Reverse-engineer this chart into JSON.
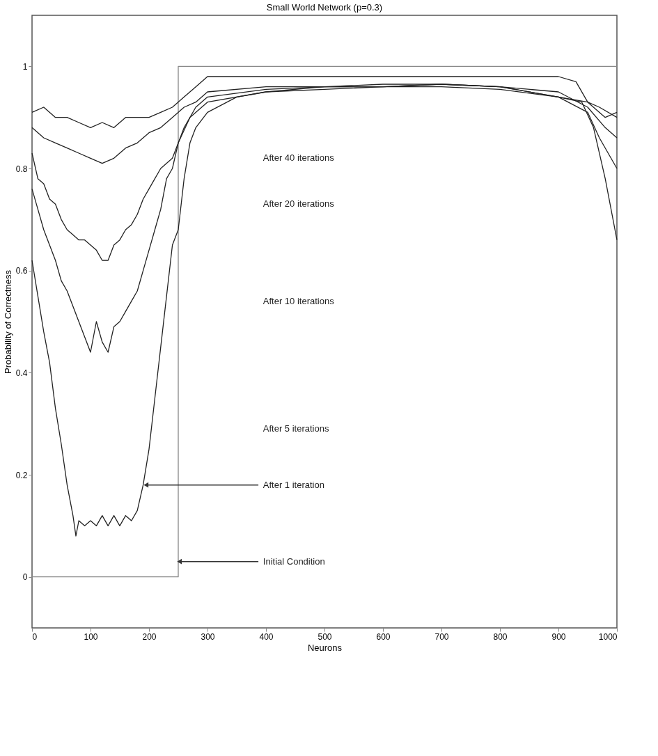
{
  "chart_data": {
    "type": "line",
    "title": "Small World Network (p=0.3)",
    "xlabel": "Neurons",
    "ylabel": "Probability of Correctness",
    "xlim": [
      0,
      1000
    ],
    "xticks": [
      0,
      100,
      200,
      300,
      400,
      500,
      600,
      700,
      800,
      900,
      {
        "value": 1000,
        "label": "1000"
      }
    ],
    "ylim": [
      -0.1,
      1.1
    ],
    "yticks": [
      0,
      0.2,
      0.4,
      0.6,
      0.8,
      1
    ],
    "grid": false,
    "marker": "none",
    "line_style": "solid",
    "series": [
      {
        "color": "#888888",
        "x": [
          0,
          250,
          250,
          1000
        ],
        "values": [
          0,
          0,
          1,
          1
        ]
      },
      {
        "color": "#222222",
        "x": [
          0,
          10,
          20,
          30,
          40,
          50,
          60,
          70,
          75,
          80,
          90,
          100,
          110,
          120,
          130,
          140,
          150,
          160,
          170,
          180,
          190,
          200,
          210,
          220,
          230,
          240,
          250,
          260,
          270,
          280,
          300,
          350,
          400,
          500,
          600,
          700,
          800,
          900,
          940,
          960,
          980,
          1000
        ],
        "values": [
          0.62,
          0.55,
          0.48,
          0.42,
          0.33,
          0.26,
          0.18,
          0.12,
          0.08,
          0.11,
          0.1,
          0.11,
          0.1,
          0.12,
          0.1,
          0.12,
          0.1,
          0.12,
          0.11,
          0.13,
          0.18,
          0.25,
          0.35,
          0.45,
          0.55,
          0.65,
          0.68,
          0.78,
          0.85,
          0.88,
          0.91,
          0.94,
          0.95,
          0.955,
          0.96,
          0.96,
          0.955,
          0.94,
          0.93,
          0.88,
          0.78,
          0.66
        ]
      },
      {
        "color": "#222222",
        "x": [
          0,
          10,
          20,
          30,
          40,
          50,
          60,
          70,
          80,
          90,
          100,
          110,
          120,
          130,
          140,
          150,
          160,
          170,
          180,
          190,
          200,
          210,
          220,
          230,
          240,
          250,
          270,
          300,
          400,
          500,
          600,
          700,
          800,
          900,
          950,
          970,
          1000
        ],
        "values": [
          0.76,
          0.72,
          0.68,
          0.65,
          0.62,
          0.58,
          0.56,
          0.53,
          0.5,
          0.47,
          0.44,
          0.5,
          0.46,
          0.44,
          0.49,
          0.5,
          0.52,
          0.54,
          0.56,
          0.6,
          0.64,
          0.68,
          0.72,
          0.78,
          0.8,
          0.85,
          0.9,
          0.93,
          0.95,
          0.96,
          0.96,
          0.965,
          0.96,
          0.94,
          0.91,
          0.86,
          0.8
        ]
      },
      {
        "color": "#222222",
        "x": [
          0,
          10,
          20,
          30,
          40,
          50,
          60,
          70,
          80,
          90,
          100,
          110,
          120,
          130,
          140,
          150,
          160,
          170,
          180,
          190,
          200,
          210,
          220,
          240,
          260,
          280,
          300,
          400,
          500,
          600,
          700,
          800,
          900,
          950,
          980,
          1000
        ],
        "values": [
          0.83,
          0.78,
          0.77,
          0.74,
          0.73,
          0.7,
          0.68,
          0.67,
          0.66,
          0.66,
          0.65,
          0.64,
          0.62,
          0.62,
          0.65,
          0.66,
          0.68,
          0.69,
          0.71,
          0.74,
          0.76,
          0.78,
          0.8,
          0.82,
          0.88,
          0.92,
          0.94,
          0.955,
          0.96,
          0.96,
          0.965,
          0.96,
          0.95,
          0.92,
          0.88,
          0.86
        ]
      },
      {
        "color": "#222222",
        "x": [
          0,
          20,
          40,
          60,
          80,
          100,
          120,
          140,
          160,
          180,
          200,
          220,
          240,
          260,
          280,
          300,
          400,
          500,
          600,
          700,
          800,
          900,
          950,
          980,
          1000
        ],
        "values": [
          0.88,
          0.86,
          0.85,
          0.84,
          0.83,
          0.82,
          0.81,
          0.82,
          0.84,
          0.85,
          0.87,
          0.88,
          0.9,
          0.92,
          0.93,
          0.95,
          0.96,
          0.96,
          0.965,
          0.965,
          0.96,
          0.94,
          0.93,
          0.9,
          0.91
        ]
      },
      {
        "color": "#222222",
        "x": [
          0,
          20,
          40,
          60,
          80,
          100,
          120,
          140,
          160,
          180,
          200,
          220,
          240,
          260,
          280,
          300,
          400,
          500,
          600,
          700,
          800,
          900,
          930,
          950,
          970,
          1000
        ],
        "values": [
          0.91,
          0.92,
          0.9,
          0.9,
          0.89,
          0.88,
          0.89,
          0.88,
          0.9,
          0.9,
          0.9,
          0.91,
          0.92,
          0.94,
          0.96,
          0.98,
          0.98,
          0.98,
          0.98,
          0.98,
          0.98,
          0.98,
          0.97,
          0.93,
          0.92,
          0.9
        ]
      }
    ],
    "annotations": [
      "After 40 iterations",
      "After 20 iterations",
      "After 10 iterations",
      "After 5 iterations",
      {
        "text": "After 1 iteration",
        "x": 195,
        "y": 0.18
      },
      {
        "text": "Initial Condition",
        "x": 252,
        "y": 0.03
      }
    ]
  }
}
